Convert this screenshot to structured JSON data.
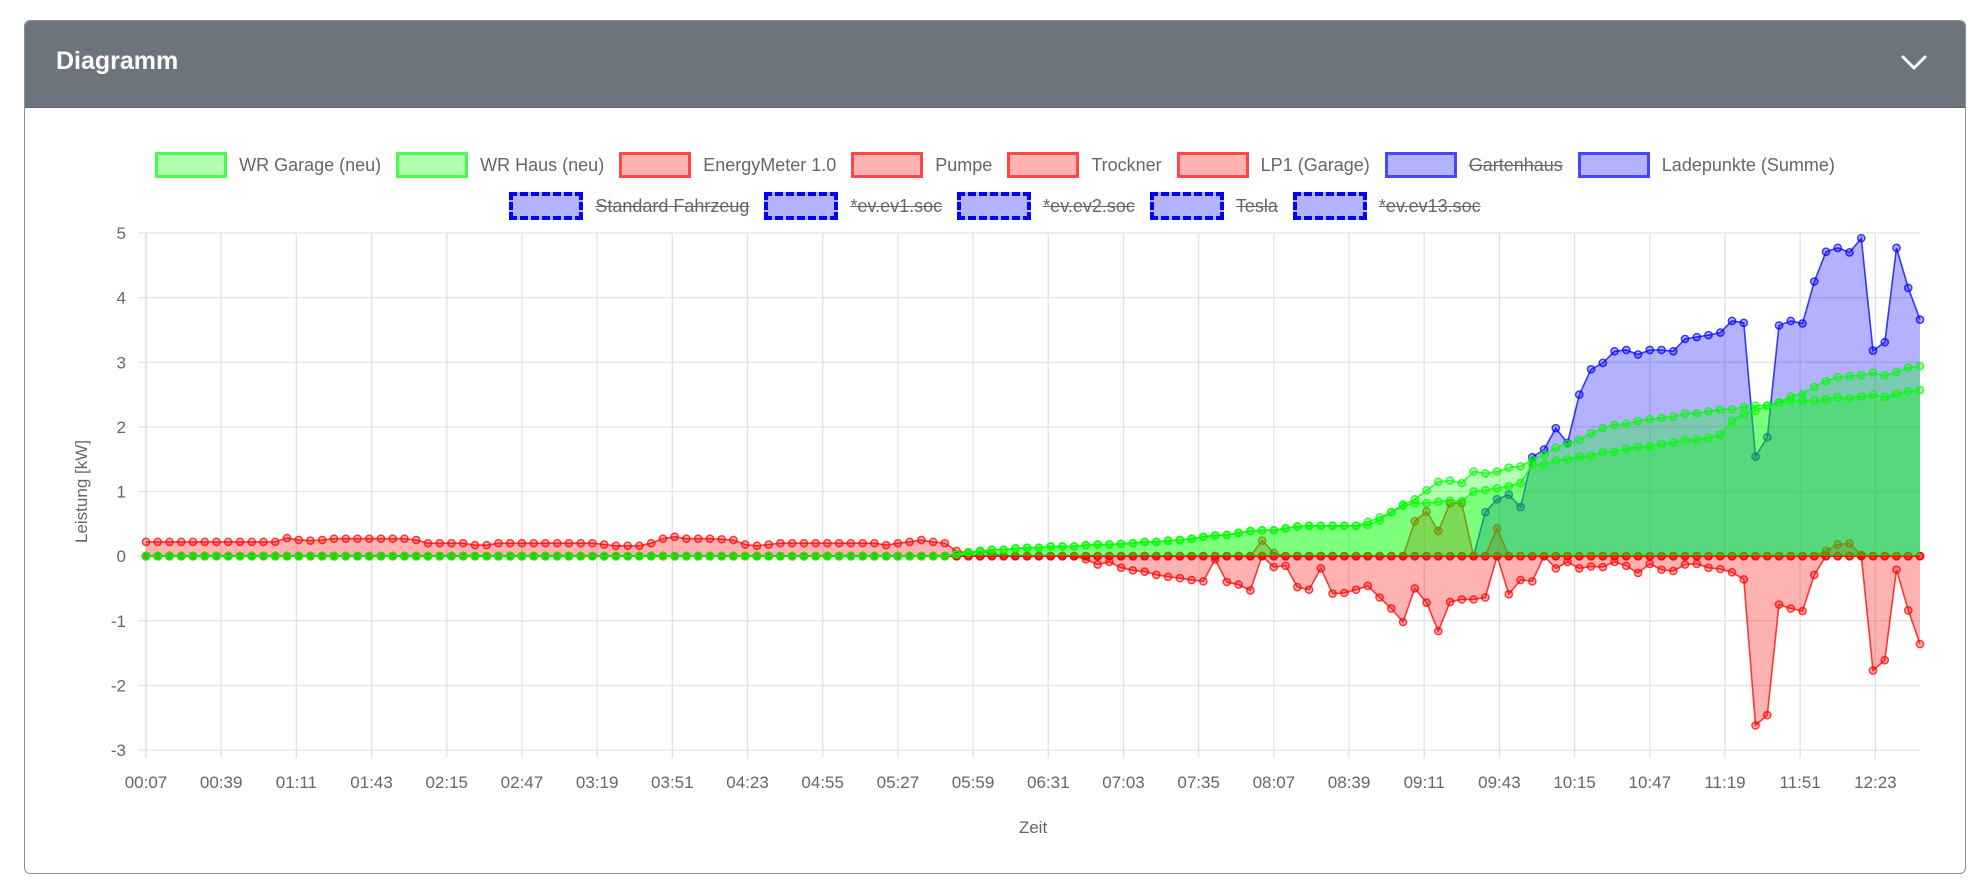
{
  "card": {
    "title": "Diagramm",
    "collapse_icon": "chevron-down-icon"
  },
  "chart_data": {
    "type": "area",
    "title": "",
    "xlabel": "Zeit",
    "ylabel": "Leistung [kW]",
    "ylim": [
      -3,
      5
    ],
    "yticks": [
      5,
      4,
      3,
      2,
      1,
      0,
      -1,
      -2,
      -3
    ],
    "x_start": "00:07",
    "x_step_minutes": 5,
    "xticks": [
      "00:07",
      "00:39",
      "01:11",
      "01:43",
      "02:15",
      "02:47",
      "03:19",
      "03:51",
      "04:23",
      "04:55",
      "05:27",
      "05:59",
      "06:31",
      "07:03",
      "07:35",
      "08:07",
      "08:39",
      "09:11",
      "09:43",
      "10:15",
      "10:47",
      "11:19",
      "11:51",
      "12:23"
    ],
    "grid": true,
    "legend": "top",
    "series": [
      {
        "name": "WR Garage (neu)",
        "color": "#00ff00",
        "hidden": false,
        "dashed": false,
        "values": [
          0,
          0,
          0,
          0,
          0,
          0,
          0,
          0,
          0,
          0,
          0,
          0,
          0,
          0,
          0,
          0,
          0,
          0,
          0,
          0,
          0,
          0,
          0,
          0,
          0,
          0,
          0,
          0,
          0,
          0,
          0,
          0,
          0,
          0,
          0,
          0,
          0,
          0,
          0,
          0,
          0,
          0,
          0,
          0,
          0,
          0,
          0,
          0,
          0,
          0,
          0,
          0,
          0,
          0,
          0,
          0,
          0,
          0,
          0,
          0,
          0,
          0,
          0,
          0,
          0,
          0,
          0,
          0,
          0,
          0.03,
          0.06,
          0.08,
          0.1,
          0.1,
          0.12,
          0.13,
          0.13,
          0.15,
          0.15,
          0.15,
          0.17,
          0.18,
          0.18,
          0.19,
          0.2,
          0.22,
          0.22,
          0.24,
          0.25,
          0.27,
          0.3,
          0.32,
          0.33,
          0.36,
          0.39,
          0.4,
          0.4,
          0.43,
          0.46,
          0.47,
          0.47,
          0.47,
          0.47,
          0.47,
          0.53,
          0.6,
          0.68,
          0.8,
          0.88,
          1.02,
          1.15,
          1.17,
          1.13,
          1.31,
          1.28,
          1.31,
          1.37,
          1.39,
          1.49,
          1.57,
          1.68,
          1.74,
          1.8,
          1.9,
          1.98,
          2.03,
          2.05,
          2.09,
          2.12,
          2.14,
          2.16,
          2.21,
          2.21,
          2.24,
          2.27,
          2.27,
          2.31,
          2.33,
          2.33,
          2.38,
          2.41,
          2.41,
          2.41,
          2.43,
          2.46,
          2.44,
          2.47,
          2.5,
          2.46,
          2.51,
          2.55,
          2.57
        ]
      },
      {
        "name": "WR Haus (neu)",
        "color": "#00ff00",
        "hidden": false,
        "dashed": false,
        "values": [
          0,
          0,
          0,
          0,
          0,
          0,
          0,
          0,
          0,
          0,
          0,
          0,
          0,
          0,
          0,
          0,
          0,
          0,
          0,
          0,
          0,
          0,
          0,
          0,
          0,
          0,
          0,
          0,
          0,
          0,
          0,
          0,
          0,
          0,
          0,
          0,
          0,
          0,
          0,
          0,
          0,
          0,
          0,
          0,
          0,
          0,
          0,
          0,
          0,
          0,
          0,
          0,
          0,
          0,
          0,
          0,
          0,
          0,
          0,
          0,
          0,
          0,
          0,
          0,
          0,
          0,
          0,
          0,
          0,
          0.03,
          0.06,
          0.08,
          0.1,
          0.1,
          0.12,
          0.13,
          0.13,
          0.15,
          0.15,
          0.15,
          0.17,
          0.18,
          0.18,
          0.19,
          0.2,
          0.22,
          0.22,
          0.24,
          0.25,
          0.27,
          0.3,
          0.32,
          0.33,
          0.36,
          0.39,
          0.4,
          0.4,
          0.43,
          0.46,
          0.47,
          0.47,
          0.47,
          0.47,
          0.47,
          0.48,
          0.55,
          0.68,
          0.78,
          0.82,
          0.82,
          0.84,
          0.86,
          0.85,
          1.0,
          1.02,
          1.05,
          1.08,
          1.13,
          1.42,
          1.42,
          1.48,
          1.5,
          1.54,
          1.55,
          1.61,
          1.62,
          1.66,
          1.69,
          1.7,
          1.74,
          1.76,
          1.8,
          1.8,
          1.83,
          1.88,
          2.09,
          2.2,
          2.25,
          2.33,
          2.38,
          2.47,
          2.51,
          2.62,
          2.71,
          2.77,
          2.79,
          2.8,
          2.84,
          2.8,
          2.85,
          2.92,
          2.94
        ]
      },
      {
        "name": "EnergyMeter 1.0",
        "color": "#ff0000",
        "hidden": false,
        "dashed": false,
        "values": [
          0.22,
          0.22,
          0.22,
          0.22,
          0.22,
          0.22,
          0.22,
          0.22,
          0.22,
          0.22,
          0.22,
          0.22,
          0.28,
          0.25,
          0.24,
          0.25,
          0.27,
          0.27,
          0.27,
          0.27,
          0.27,
          0.27,
          0.27,
          0.25,
          0.2,
          0.2,
          0.2,
          0.2,
          0.17,
          0.17,
          0.2,
          0.2,
          0.2,
          0.2,
          0.2,
          0.2,
          0.2,
          0.2,
          0.2,
          0.18,
          0.16,
          0.16,
          0.16,
          0.2,
          0.27,
          0.3,
          0.27,
          0.27,
          0.27,
          0.26,
          0.25,
          0.18,
          0.16,
          0.18,
          0.2,
          0.2,
          0.2,
          0.2,
          0.2,
          0.2,
          0.2,
          0.2,
          0.2,
          0.17,
          0.2,
          0.22,
          0.25,
          0.22,
          0.2,
          0.08,
          0.05,
          0.08,
          0.05,
          0,
          0,
          0,
          0,
          0,
          0,
          0,
          -0.05,
          -0.13,
          -0.09,
          -0.18,
          -0.22,
          -0.24,
          -0.29,
          -0.32,
          -0.34,
          -0.37,
          -0.39,
          -0.05,
          -0.4,
          -0.44,
          -0.53,
          0,
          -0.17,
          -0.15,
          -0.48,
          -0.52,
          -0.19,
          -0.58,
          -0.57,
          -0.52,
          -0.46,
          -0.64,
          -0.81,
          -1.02,
          -0.5,
          -0.72,
          -1.16,
          -0.71,
          -0.67,
          -0.67,
          -0.64,
          0,
          -0.59,
          -0.37,
          -0.39,
          0,
          -0.19,
          -0.09,
          -0.19,
          -0.16,
          -0.17,
          -0.09,
          -0.15,
          -0.26,
          -0.12,
          -0.21,
          -0.23,
          -0.13,
          -0.12,
          -0.18,
          -0.2,
          -0.25,
          -0.36,
          -2.62,
          -2.46,
          -0.75,
          -0.81,
          -0.85,
          -0.29,
          0,
          0,
          0,
          0,
          -1.77,
          -1.61,
          -0.21,
          -0.84,
          -1.36
        ]
      },
      {
        "name": "Pumpe",
        "color": "#ff0000",
        "hidden": false,
        "dashed": false,
        "values": [
          0,
          0,
          0,
          0,
          0,
          0,
          0,
          0,
          0,
          0,
          0,
          0,
          0,
          0,
          0,
          0,
          0,
          0,
          0,
          0,
          0,
          0,
          0,
          0,
          0,
          0,
          0,
          0,
          0,
          0,
          0,
          0,
          0,
          0,
          0,
          0,
          0,
          0,
          0,
          0,
          0,
          0,
          0,
          0,
          0,
          0,
          0,
          0,
          0,
          0,
          0,
          0,
          0,
          0,
          0,
          0,
          0,
          0,
          0,
          0,
          0,
          0,
          0,
          0,
          0,
          0,
          0,
          0,
          0,
          0,
          0,
          0,
          0,
          0,
          0,
          0,
          0,
          0,
          0,
          0,
          0,
          0,
          0,
          0,
          0,
          0,
          0,
          0,
          0,
          0,
          0,
          0,
          0,
          0,
          0,
          0,
          0,
          0,
          0,
          0,
          0,
          0,
          0,
          0,
          0,
          0,
          0,
          0,
          0,
          0,
          0,
          0,
          0,
          0,
          0,
          0,
          0,
          0,
          0,
          0,
          0,
          0,
          0,
          0,
          0,
          0,
          0,
          0,
          0,
          0,
          0,
          0,
          0,
          0,
          0,
          0,
          0,
          0,
          0,
          0,
          0,
          0,
          0,
          0,
          0,
          0,
          0,
          0,
          0,
          0,
          0,
          0
        ]
      },
      {
        "name": "Trockner",
        "color": "#ff0000",
        "hidden": false,
        "dashed": false,
        "values": [
          0,
          0,
          0,
          0,
          0,
          0,
          0,
          0,
          0,
          0,
          0,
          0,
          0,
          0,
          0,
          0,
          0,
          0,
          0,
          0,
          0,
          0,
          0,
          0,
          0,
          0,
          0,
          0,
          0,
          0,
          0,
          0,
          0,
          0,
          0,
          0,
          0,
          0,
          0,
          0,
          0,
          0,
          0,
          0,
          0,
          0,
          0,
          0,
          0,
          0,
          0,
          0,
          0,
          0,
          0,
          0,
          0,
          0,
          0,
          0,
          0,
          0,
          0,
          0,
          0,
          0,
          0,
          0,
          0,
          0,
          0,
          0,
          0,
          0,
          0,
          0,
          0,
          0,
          0,
          0,
          0,
          0,
          0,
          0,
          0,
          0,
          0,
          0,
          0,
          0,
          0,
          0,
          0,
          0,
          0,
          0,
          0,
          0,
          0,
          0,
          0,
          0,
          0,
          0,
          0,
          0,
          0,
          0,
          0,
          0,
          0,
          0,
          0,
          0,
          0,
          0,
          0,
          0,
          0,
          0,
          0,
          0,
          0,
          0,
          0,
          0,
          0,
          0,
          0,
          0,
          0,
          0,
          0,
          0,
          0,
          0,
          0,
          0,
          0,
          0,
          0,
          0,
          0,
          0,
          0,
          0,
          0,
          0,
          0,
          0,
          0,
          0
        ]
      },
      {
        "name": "LP1 (Garage)",
        "color": "#ff0000",
        "hidden": false,
        "dashed": false,
        "values": [
          0,
          0,
          0,
          0,
          0,
          0,
          0,
          0,
          0,
          0,
          0,
          0,
          0,
          0,
          0,
          0,
          0,
          0,
          0,
          0,
          0,
          0,
          0,
          0,
          0,
          0,
          0,
          0,
          0,
          0,
          0,
          0,
          0,
          0,
          0,
          0,
          0,
          0,
          0,
          0,
          0,
          0,
          0,
          0,
          0,
          0,
          0,
          0,
          0,
          0,
          0,
          0,
          0,
          0,
          0,
          0,
          0,
          0,
          0,
          0,
          0,
          0,
          0,
          0,
          0,
          0,
          0,
          0,
          0,
          0,
          0,
          0,
          0,
          0,
          0,
          0,
          0,
          0,
          0,
          0,
          0,
          0,
          0,
          0,
          0,
          0,
          0,
          0,
          0,
          0,
          0,
          0,
          0,
          0,
          0,
          0.24,
          0.05,
          0,
          0,
          0,
          0,
          0,
          0,
          0,
          0,
          0,
          0,
          0,
          0.54,
          0.69,
          0.39,
          0.82,
          0.82,
          0,
          0,
          0.43,
          0,
          0,
          0,
          0,
          0,
          0,
          0,
          0,
          0,
          0,
          0,
          0,
          0,
          0,
          0,
          0,
          0,
          0,
          0,
          0,
          0,
          0,
          0,
          0,
          0,
          0,
          0,
          0.08,
          0.18,
          0.2,
          0.02,
          0,
          0,
          0,
          0,
          0
        ]
      },
      {
        "name": "Gartenhaus",
        "color": "#0000ff",
        "hidden": true,
        "dashed": false
      },
      {
        "name": "Ladepunkte (Summe)",
        "color": "#0000ff",
        "hidden": false,
        "dashed": false,
        "values": [
          0,
          0,
          0,
          0,
          0,
          0,
          0,
          0,
          0,
          0,
          0,
          0,
          0,
          0,
          0,
          0,
          0,
          0,
          0,
          0,
          0,
          0,
          0,
          0,
          0,
          0,
          0,
          0,
          0,
          0,
          0,
          0,
          0,
          0,
          0,
          0,
          0,
          0,
          0,
          0,
          0,
          0,
          0,
          0,
          0,
          0,
          0,
          0,
          0,
          0,
          0,
          0,
          0,
          0,
          0,
          0,
          0,
          0,
          0,
          0,
          0,
          0,
          0,
          0,
          0,
          0,
          0,
          0,
          0,
          0,
          0,
          0,
          0,
          0,
          0,
          0,
          0,
          0,
          0,
          0,
          0,
          0,
          0,
          0,
          0,
          0,
          0,
          0,
          0,
          0,
          0,
          0,
          0,
          0,
          0,
          0,
          0,
          0,
          0,
          0,
          0,
          0,
          0,
          0,
          0,
          0,
          0,
          0,
          0,
          0,
          0,
          0,
          0,
          0,
          0.68,
          0.88,
          0.95,
          0.76,
          1.53,
          1.65,
          1.98,
          1.75,
          2.5,
          2.89,
          2.99,
          3.17,
          3.19,
          3.12,
          3.19,
          3.19,
          3.17,
          3.36,
          3.39,
          3.42,
          3.46,
          3.64,
          3.61,
          1.54,
          1.84,
          3.57,
          3.64,
          3.6,
          4.25,
          4.71,
          4.77,
          4.7,
          4.92,
          3.18,
          3.31,
          4.77,
          4.15,
          3.66
        ]
      },
      {
        "name": "Standard Fahrzeug",
        "color": "#0000ff",
        "hidden": true,
        "dashed": true
      },
      {
        "name": "*ev.ev1.soc",
        "color": "#0000ff",
        "hidden": true,
        "dashed": true
      },
      {
        "name": "*ev.ev2.soc",
        "color": "#0000ff",
        "hidden": true,
        "dashed": true
      },
      {
        "name": "Tesla",
        "color": "#0000ff",
        "hidden": true,
        "dashed": true
      },
      {
        "name": "*ev.ev13.soc",
        "color": "#0000ff",
        "hidden": true,
        "dashed": true
      }
    ]
  }
}
